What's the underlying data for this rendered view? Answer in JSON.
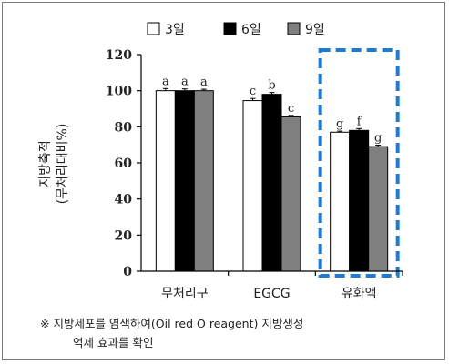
{
  "chart_data": {
    "type": "bar",
    "categories": [
      "무처리구",
      "EGCG",
      "유화액"
    ],
    "series": [
      {
        "name": "3일",
        "color": "#ffffff",
        "values": [
          100,
          94.5,
          77
        ],
        "errors": [
          1.2,
          1.2,
          0.6
        ],
        "letters": [
          "a",
          "c",
          "g"
        ]
      },
      {
        "name": "6일",
        "color": "#000000",
        "values": [
          100,
          98,
          78
        ],
        "errors": [
          1.0,
          1.0,
          1.0
        ],
        "letters": [
          "a",
          "b",
          "f"
        ]
      },
      {
        "name": "9일",
        "color": "#808080",
        "values": [
          100,
          85.5,
          69
        ],
        "errors": [
          0.8,
          0.8,
          0.8
        ],
        "letters": [
          "a",
          "c",
          "g"
        ]
      }
    ],
    "ylabel_line1": "지방축적",
    "ylabel_line2": "(무처리대비%)",
    "ylim": [
      0,
      120
    ],
    "yticks": [
      0,
      20,
      40,
      60,
      80,
      100,
      120
    ],
    "legend_position": "top",
    "highlight_category": "유화액",
    "highlight_color": "#1e7bd1"
  },
  "note_line1": "※ 지방세포를 염색하여(Oil red O reagent) 지방생성",
  "note_line2": "억제 효과를 확인"
}
